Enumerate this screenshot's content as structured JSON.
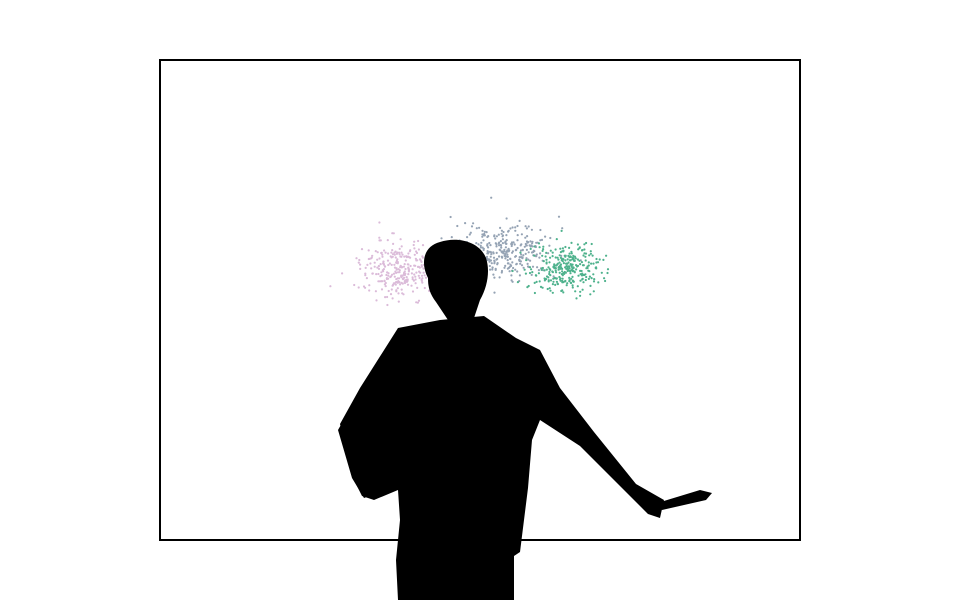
{
  "colors": {
    "background": "#ffffff",
    "frame": "#000000",
    "silhouette": "#000000",
    "point_palette": [
      "#e3c4de",
      "#d7b3d6",
      "#9ba5b8",
      "#8aa3aa",
      "#59b596",
      "#3fae82"
    ]
  },
  "chart_data": {
    "type": "scatter",
    "title": "",
    "xlabel": "",
    "ylabel": "",
    "grid": false,
    "legend": "none",
    "series": [
      {
        "color": "#dbbbd9",
        "point_count": 300
      },
      {
        "color": "#95a3b4",
        "point_count": 300
      },
      {
        "color": "#4fb28d",
        "point_count": 300
      }
    ]
  }
}
